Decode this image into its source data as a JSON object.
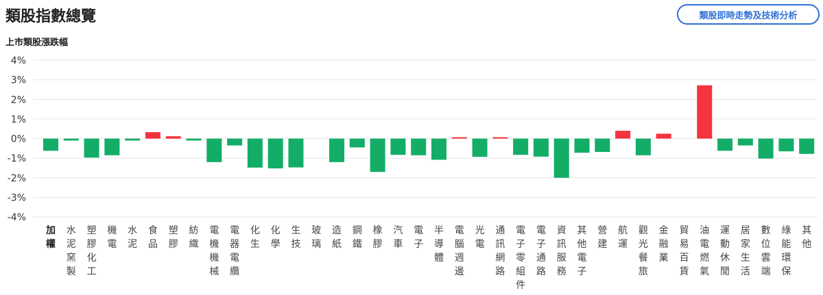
{
  "header": {
    "title": "類股指數總覽",
    "analysis_button": "類股即時走勢及技術分析"
  },
  "colors": {
    "up": "#f5333f",
    "down": "#13ad67",
    "grid": "#e6e6e6",
    "accent": "#2f6fd6"
  },
  "chart_data": {
    "type": "bar",
    "title": "上市類股漲跌幅",
    "xlabel": "",
    "ylabel": "",
    "ylim": [
      -4,
      4
    ],
    "y_ticks": [
      "4%",
      "3%",
      "2%",
      "1%",
      "0%",
      "-1%",
      "-2%",
      "-3%",
      "-4%"
    ],
    "grid": true,
    "categories": [
      "加權",
      "水泥窯製",
      "塑膠化工",
      "機電",
      "水泥",
      "食品",
      "塑膠",
      "紡織",
      "電機機械",
      "電器電纜",
      "化生",
      "化學",
      "生技",
      "玻璃",
      "造紙",
      "鋼鐵",
      "橡膠",
      "汽車",
      "電子",
      "半導體",
      "電腦週邊",
      "光電",
      "通訊網路",
      "電子零組件",
      "電子通路",
      "資訊服務",
      "其他電子",
      "營建",
      "航運",
      "觀光餐旅",
      "金融業",
      "貿易百貨",
      "油電燃氣",
      "運動休閒",
      "居家生活",
      "數位雲端",
      "綠能環保",
      "其他"
    ],
    "values": [
      -0.62,
      -0.1,
      -0.97,
      -0.85,
      -0.1,
      0.33,
      0.12,
      -0.1,
      -1.2,
      -0.35,
      -1.48,
      -1.52,
      -1.47,
      0.0,
      -1.2,
      -0.45,
      -1.7,
      -0.83,
      -0.85,
      -1.08,
      0.07,
      -0.93,
      0.07,
      -0.83,
      -0.92,
      -2.0,
      -0.72,
      -0.68,
      0.4,
      -0.85,
      0.25,
      0.0,
      2.72,
      -0.62,
      -0.35,
      -1.02,
      -0.65,
      -0.78
    ]
  }
}
